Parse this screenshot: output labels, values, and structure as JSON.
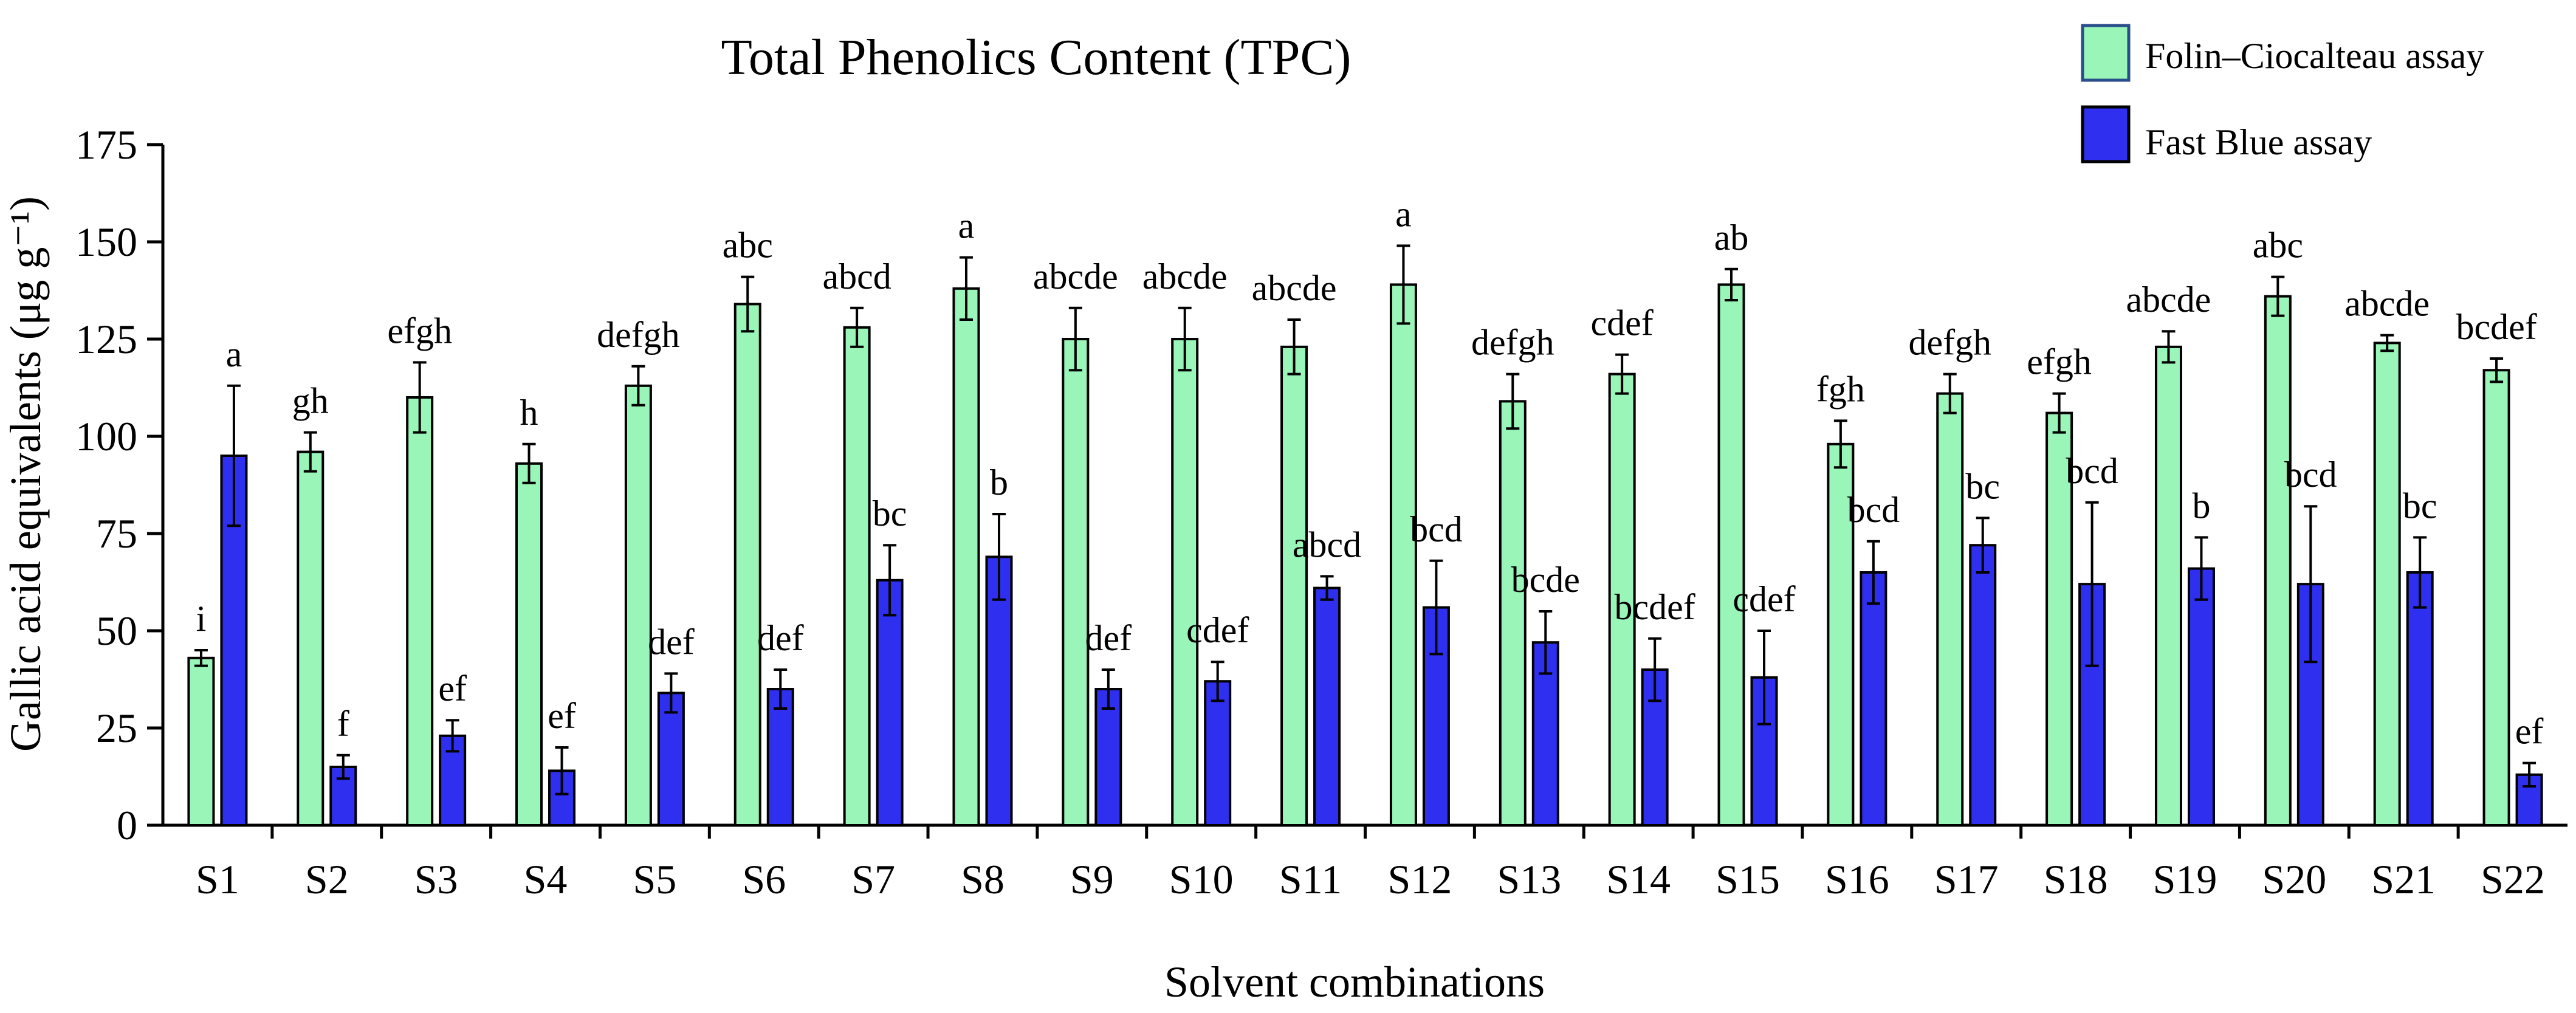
{
  "chart_data": {
    "type": "bar",
    "title": "Total Phenolics Content (TPC)",
    "xlabel": "Solvent combinations",
    "ylabel": "Gallic acid equivalents  (μg g⁻¹)",
    "ylim": [
      0,
      175
    ],
    "yticks": [
      0,
      25,
      50,
      75,
      100,
      125,
      150,
      175
    ],
    "categories": [
      "S1",
      "S2",
      "S3",
      "S4",
      "S5",
      "S6",
      "S7",
      "S8",
      "S9",
      "S10",
      "S11",
      "S12",
      "S13",
      "S14",
      "S15",
      "S16",
      "S17",
      "S18",
      "S19",
      "S20",
      "S21",
      "S22"
    ],
    "legend_position": "top-right",
    "series": [
      {
        "name": "Folin–Ciocalteau assay",
        "color": "#99f5b8",
        "values": [
          43,
          96,
          110,
          93,
          113,
          134,
          128,
          138,
          125,
          125,
          123,
          139,
          109,
          116,
          139,
          98,
          111,
          106,
          123,
          136,
          124,
          117
        ],
        "errors": [
          2,
          5,
          9,
          5,
          5,
          7,
          5,
          8,
          8,
          8,
          7,
          10,
          7,
          5,
          4,
          6,
          5,
          5,
          4,
          5,
          2,
          3
        ],
        "labels": [
          "i",
          "gh",
          "efgh",
          "h",
          "defgh",
          "abc",
          "abcd",
          "a",
          "abcde",
          "abcde",
          "abcde",
          "a",
          "defgh",
          "cdef",
          "ab",
          "fgh",
          "defgh",
          "efgh",
          "abcde",
          "abc",
          "abcde",
          "bcdef"
        ]
      },
      {
        "name": "Fast Blue assay",
        "color": "#2f2ff0",
        "values": [
          95,
          15,
          23,
          14,
          34,
          35,
          63,
          69,
          35,
          37,
          61,
          56,
          47,
          40,
          38,
          65,
          72,
          62,
          66,
          62,
          65,
          13
        ],
        "errors": [
          18,
          3,
          4,
          6,
          5,
          5,
          9,
          11,
          5,
          5,
          3,
          12,
          8,
          8,
          12,
          8,
          7,
          21,
          8,
          20,
          9,
          3
        ],
        "labels": [
          "a",
          "f",
          "ef",
          "ef",
          "def",
          "def",
          "bc",
          "b",
          "def",
          "cdef",
          "abcd",
          "bcd",
          "bcde",
          "bcdef",
          "cdef",
          "bcd",
          "bc",
          "bcd",
          "b",
          "bcd",
          "bc",
          "ef"
        ]
      }
    ]
  }
}
